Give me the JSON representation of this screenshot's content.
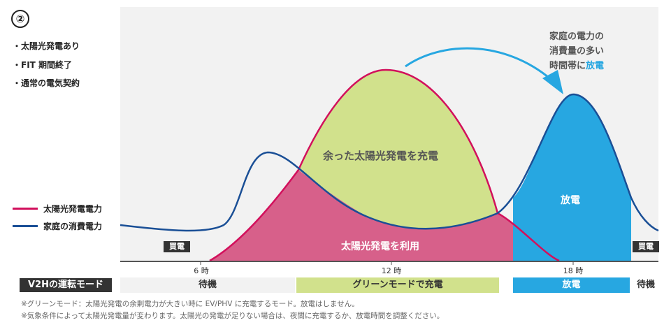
{
  "header": {
    "number": "②",
    "bullets": [
      "・太陽光発電あり",
      "・FIT 期間終了",
      "・通常の電気契約"
    ]
  },
  "legend": [
    {
      "label": "太陽光発電電力",
      "color": "#d2105c"
    },
    {
      "label": "家庭の消費電力",
      "color": "#1a4f96"
    }
  ],
  "chart": {
    "surplus_label": "余った太陽光発電を充電",
    "solar_use_label": "太陽光発電を利用",
    "discharge_label": "放電",
    "buy_left": "買電",
    "buy_right": "買電",
    "annotation": {
      "line1": "家庭の電力の",
      "line2": "消費量の多い",
      "line3_prefix": "時間帯に",
      "line3_highlight": "放電"
    },
    "ticks": [
      "6 時",
      "12 時",
      "18 時"
    ]
  },
  "mode": {
    "title": "V2Hの運転モード",
    "standby": "待機",
    "green": "グリーンモードで充電",
    "discharge": "放電",
    "standby_end": "待機"
  },
  "notes": [
    "※グリーンモード：太陽光発電の余剰電力が大きい時に EV/PHV に充電するモード。放電はしません。",
    "※気象条件によって太陽光発電量が変わります。太陽光の発電が足りない場合は、夜間に充電するか、放電時間を調整ください。"
  ],
  "colors": {
    "solar": "#d2105c",
    "home": "#1a4f96",
    "green_fill": "#d1e18c",
    "pink_fill": "#d7608a",
    "blue_fill": "#27a7e1",
    "plot_bg": "#f2f2f2",
    "annot_blue": "#27a7e1"
  }
}
